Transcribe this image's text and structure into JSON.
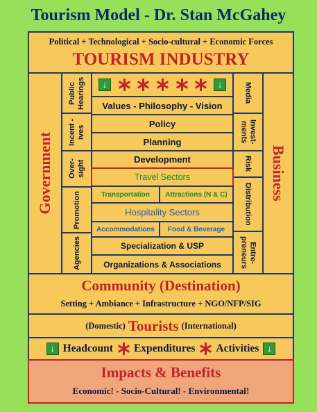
{
  "title": "Tourism Model - Dr. Stan McGahey",
  "forces": "Political + Technological + Socio-cultural + Economic Forces",
  "industry": "TOURISM INDUSTRY",
  "government": "Government",
  "business": "Business",
  "gov_items": [
    "Public Hearings",
    "Incent -ives",
    "Over- sight",
    "Promotion",
    "Agencies"
  ],
  "bus_items": [
    "Media",
    "Invest- ments",
    "Risk",
    "Distribution",
    "Entre- preneurs"
  ],
  "center": {
    "values": "Values - Philosophy - Vision",
    "policy": "Policy",
    "planning": "Planning",
    "development": "Development",
    "travel_sectors": "Travel Sectors",
    "transportation": "Transportation",
    "attractions": "Attractions (N & C)",
    "hospitality": "Hospitality Sectors",
    "accommodations": "Accommodations",
    "food": "Food & Beverage",
    "specialization": "Specialization & USP",
    "organizations": "Organizations & Associations"
  },
  "community": "Community (Destination)",
  "community_sub": "Setting + Ambiance + Infrastructure + NGO/NFP/SIG",
  "tourists_left": "(Domestic)",
  "tourists": "Tourists",
  "tourists_right": "(International)",
  "metrics": [
    "Headcount",
    "Expenditures",
    "Activities"
  ],
  "impacts": "Impacts & Benefits",
  "impacts_sub": "Economic! - Socio-Cultural! - Environmental!",
  "icons": {
    "arrow": "green-down-arrow-icon",
    "star": "red-asterisk-icon"
  },
  "colors": {
    "background": "#99e05a",
    "box": "#f7c85a",
    "navy": "#1f3a66",
    "red": "#c0242a",
    "green": "#1e8a2a",
    "blue": "#1f5fbf",
    "impacts": "#f0a57a"
  }
}
